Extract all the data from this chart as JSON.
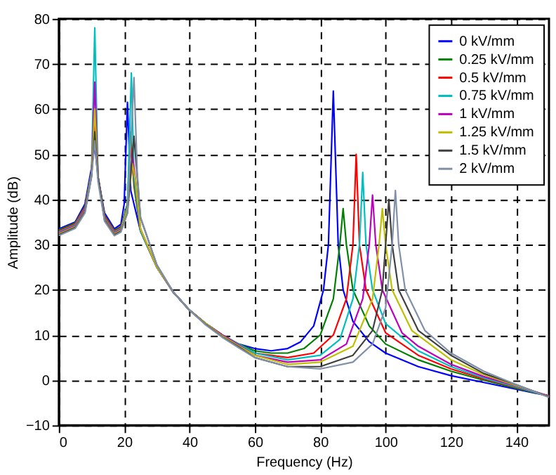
{
  "chart_data": {
    "type": "line",
    "xlabel": "Frequency (Hz)",
    "ylabel": "Amplitude (dB)",
    "xlim": [
      0,
      150
    ],
    "xticks": [
      0,
      20,
      40,
      60,
      80,
      100,
      120,
      140
    ],
    "ylim": [
      -10,
      80
    ],
    "yticks": [
      -10,
      0,
      10,
      20,
      30,
      40,
      50,
      60,
      70,
      80
    ],
    "grid": true,
    "legend": "top right",
    "series": [
      {
        "name": "0 kV/mm",
        "color": "#0000ff",
        "x": [
          0,
          5,
          8,
          10,
          11,
          12,
          14,
          17,
          19,
          20,
          21,
          22,
          25,
          30,
          35,
          40,
          45,
          50,
          55,
          60,
          65,
          70,
          74,
          78,
          81,
          82.5,
          84,
          85.5,
          87,
          90,
          95,
          100,
          110,
          120,
          130,
          140,
          150
        ],
        "values": [
          33.5,
          35,
          39,
          47,
          52,
          45,
          37,
          33.5,
          34.5,
          39,
          61.5,
          42,
          33,
          25,
          19.5,
          15.5,
          12.5,
          10,
          8,
          7,
          6.5,
          7,
          8.5,
          12,
          20,
          30,
          64,
          30,
          20,
          13,
          8.5,
          6,
          3,
          1,
          -0.5,
          -2,
          -3.5
        ]
      },
      {
        "name": "0.25 kV/mm",
        "color": "#008000",
        "x": [
          0,
          5,
          8,
          10,
          11,
          12,
          14,
          17,
          19,
          21,
          22,
          23,
          25,
          30,
          35,
          40,
          45,
          50,
          55,
          60,
          65,
          70,
          75,
          80,
          84,
          86,
          87,
          88,
          90,
          95,
          100,
          110,
          120,
          130,
          140,
          150
        ],
        "values": [
          33.2,
          34.8,
          38.5,
          46,
          55,
          45,
          36.5,
          33.2,
          34,
          39,
          55,
          43,
          33,
          25,
          19.5,
          15.5,
          12.5,
          10,
          8,
          6.5,
          6,
          6,
          7,
          10,
          18,
          30,
          38,
          30,
          20,
          12,
          8,
          4.5,
          2,
          0,
          -1.8,
          -3.5
        ]
      },
      {
        "name": "0.5 kV/mm",
        "color": "#ff0000",
        "x": [
          0,
          5,
          8,
          10,
          11,
          12,
          14,
          17,
          19,
          21,
          22,
          23,
          25,
          30,
          35,
          40,
          45,
          50,
          55,
          60,
          70,
          78,
          84,
          88,
          90,
          91,
          92,
          94,
          100,
          110,
          120,
          130,
          140,
          150
        ],
        "values": [
          33,
          34.6,
          38.3,
          46,
          57,
          45,
          36.3,
          33,
          33.8,
          38.5,
          52,
          44,
          33,
          25,
          19.5,
          15.5,
          12.5,
          10,
          8,
          6,
          5,
          6,
          10,
          18,
          30,
          50,
          30,
          20,
          10.5,
          5.5,
          2.5,
          0.3,
          -1.6,
          -3.5
        ]
      },
      {
        "name": "0.75 kV/mm",
        "color": "#00bfbf",
        "x": [
          0,
          5,
          8,
          10,
          11,
          12,
          14,
          17,
          19,
          21,
          22.2,
          23,
          25,
          30,
          35,
          40,
          45,
          50,
          55,
          60,
          70,
          80,
          86,
          90,
          92,
          93,
          94,
          96,
          100,
          110,
          120,
          130,
          140,
          150
        ],
        "values": [
          32.8,
          34.4,
          38,
          46,
          78,
          45,
          36,
          32.8,
          33.6,
          38.5,
          68,
          45,
          33,
          25,
          19.5,
          15.5,
          12.5,
          10,
          8,
          6,
          4.5,
          5.5,
          9,
          18,
          30,
          46,
          30,
          20,
          12.5,
          6.5,
          3,
          0.5,
          -1.5,
          -3.6
        ]
      },
      {
        "name": "1 kV/mm",
        "color": "#bf00bf",
        "x": [
          0,
          5,
          8,
          10,
          11,
          12,
          14,
          17,
          19,
          21,
          22.5,
          23.5,
          25,
          30,
          35,
          40,
          45,
          50,
          55,
          60,
          70,
          80,
          88,
          93,
          95,
          96,
          97,
          99,
          105,
          110,
          120,
          130,
          140,
          150
        ],
        "values": [
          32.6,
          34.2,
          37.8,
          45.5,
          66,
          45,
          35.8,
          32.6,
          33.4,
          38,
          50,
          44,
          33.5,
          25,
          19.5,
          15.5,
          12.5,
          10,
          7.8,
          5.5,
          4,
          4.5,
          8,
          18,
          30,
          41,
          30,
          20,
          10.5,
          7.5,
          3.5,
          0.8,
          -1.3,
          -3.5
        ]
      },
      {
        "name": "1.25 kV/mm",
        "color": "#bfbf00",
        "x": [
          0,
          5,
          8,
          10,
          11,
          12,
          14,
          17,
          19,
          21,
          22.5,
          23.5,
          25,
          30,
          35,
          40,
          45,
          50,
          55,
          60,
          70,
          80,
          90,
          96,
          98,
          99,
          100,
          102,
          108,
          120,
          130,
          140,
          150
        ],
        "values": [
          32.4,
          34,
          37.5,
          45.5,
          60,
          45,
          35.6,
          32.4,
          33.2,
          38,
          48,
          44,
          33.5,
          25,
          19.5,
          15.5,
          12.5,
          9.8,
          7.6,
          5.5,
          3.5,
          4,
          7.5,
          18,
          30,
          38,
          30,
          20,
          11,
          4.5,
          1.2,
          -1.2,
          -3.6
        ]
      },
      {
        "name": "1.5 kV/mm",
        "color": "#404040",
        "x": [
          0,
          5,
          8,
          10,
          11,
          12,
          14,
          17,
          19,
          21,
          23,
          24,
          25,
          30,
          35,
          40,
          45,
          50,
          55,
          60,
          70,
          80,
          90,
          96,
          99,
          100,
          101,
          102,
          104,
          110,
          120,
          130,
          140,
          150
        ],
        "values": [
          32.2,
          33.8,
          37.3,
          45,
          55,
          45,
          35.4,
          32.2,
          33,
          37,
          54,
          45,
          36,
          25.5,
          19.5,
          15.5,
          12.3,
          9.6,
          7.4,
          5,
          3,
          3,
          5.5,
          11,
          20,
          30,
          40,
          30,
          20,
          11,
          5.5,
          1.5,
          -1,
          -3.7
        ]
      },
      {
        "name": "2 kV/mm",
        "color": "#8090a8",
        "x": [
          0,
          5,
          8,
          10,
          11,
          12,
          14,
          17,
          19,
          21,
          23,
          24,
          25,
          30,
          35,
          40,
          45,
          50,
          55,
          60,
          70,
          80,
          90,
          96,
          100,
          102,
          103,
          104,
          106,
          112,
          120,
          130,
          140,
          150
        ],
        "values": [
          32,
          33.6,
          37,
          45,
          53,
          44,
          35.2,
          32,
          32.8,
          37,
          67,
          46,
          36,
          25.5,
          19.5,
          15.5,
          12.2,
          9.5,
          7.2,
          5,
          3,
          2.5,
          4,
          8,
          16,
          30,
          42,
          30,
          20,
          11,
          6,
          2,
          -1,
          -3.8
        ]
      }
    ]
  }
}
